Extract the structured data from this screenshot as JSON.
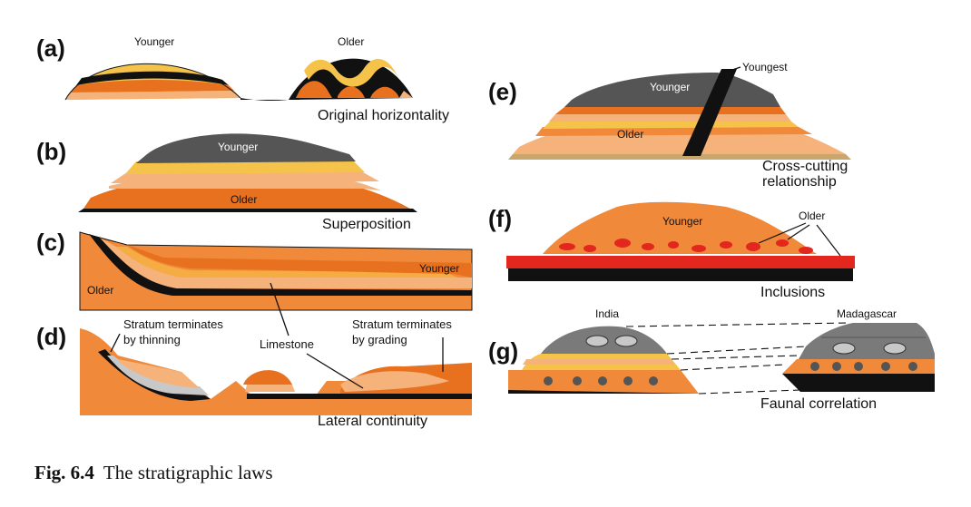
{
  "panels": {
    "a": {
      "letter": "(a)",
      "left_label": "Younger",
      "right_label": "Older",
      "caption": "Original horizontality"
    },
    "b": {
      "letter": "(b)",
      "top_label": "Younger",
      "bottom_label": "Older",
      "caption": "Superposition"
    },
    "c": {
      "letter": "(c)",
      "right_label": "Younger",
      "left_label": "Older"
    },
    "d": {
      "letter": "(d)",
      "left_note_1": "Stratum terminates",
      "left_note_2": "by thinning",
      "center_label": "Limestone",
      "right_note_1": "Stratum terminates",
      "right_note_2": "by grading",
      "caption": "Lateral continuity"
    },
    "e": {
      "letter": "(e)",
      "dike_label": "Youngest",
      "top_label": "Younger",
      "bottom_label": "Older",
      "caption_1": "Cross-cutting",
      "caption_2": "relationship"
    },
    "f": {
      "letter": "(f)",
      "top_label": "Younger",
      "inclusion_label": "Older",
      "caption": "Inclusions"
    },
    "g": {
      "letter": "(g)",
      "left_label": "India",
      "right_label": "Madagascar",
      "caption": "Faunal correlation"
    }
  },
  "figure_caption": {
    "number": "Fig. 6.4",
    "text": "The stratigraphic laws"
  },
  "colors": {
    "light_orange": "#f5b27a",
    "orange": "#f08a3a",
    "dark_orange": "#e8711f",
    "yellow": "#f6c34a",
    "black": "#111111",
    "gray": "#7a7a7a",
    "light_gray": "#c8c8c8",
    "red": "#e3261e"
  }
}
